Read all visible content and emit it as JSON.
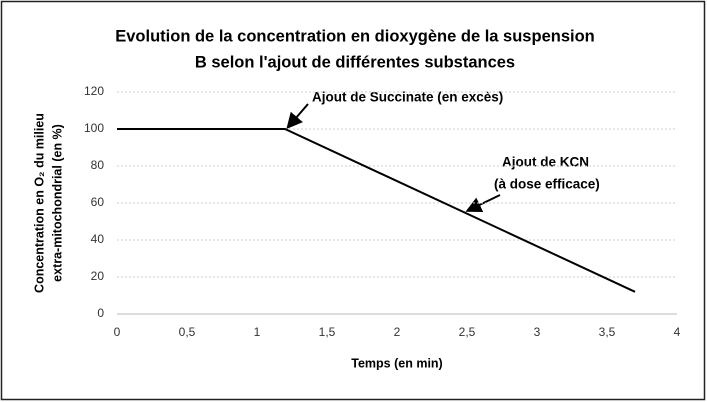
{
  "chart_data": {
    "type": "line",
    "title": [
      "Evolution de la concentration en dioxygène de la suspension",
      "B selon l'ajout de différentes substances"
    ],
    "x_label": "Temps (en min)",
    "y_label": [
      "Concentration en O₂ du milieu",
      "extra-mitochondrial (en %)"
    ],
    "x": [
      0,
      1.2,
      3.7
    ],
    "series": [
      {
        "name": "Concentration en O₂",
        "color": "#000000",
        "values": [
          100,
          100,
          12
        ]
      }
    ],
    "xlim": [
      0,
      4
    ],
    "xticks": [
      0,
      {
        "value": 0.5,
        "label": "0,5"
      },
      1,
      {
        "value": 1.5,
        "label": "1,5"
      },
      2,
      {
        "value": 2.5,
        "label": "2,5"
      },
      3,
      {
        "value": 3.5,
        "label": "3,5"
      },
      4
    ],
    "ylim": [
      0,
      120
    ],
    "yticks": [
      0,
      20,
      40,
      60,
      80,
      100,
      120
    ],
    "grid": true,
    "annotations": [
      "Ajout de Succinate (en excès)",
      "Ajout de KCN",
      "(à dose efficace)"
    ]
  }
}
